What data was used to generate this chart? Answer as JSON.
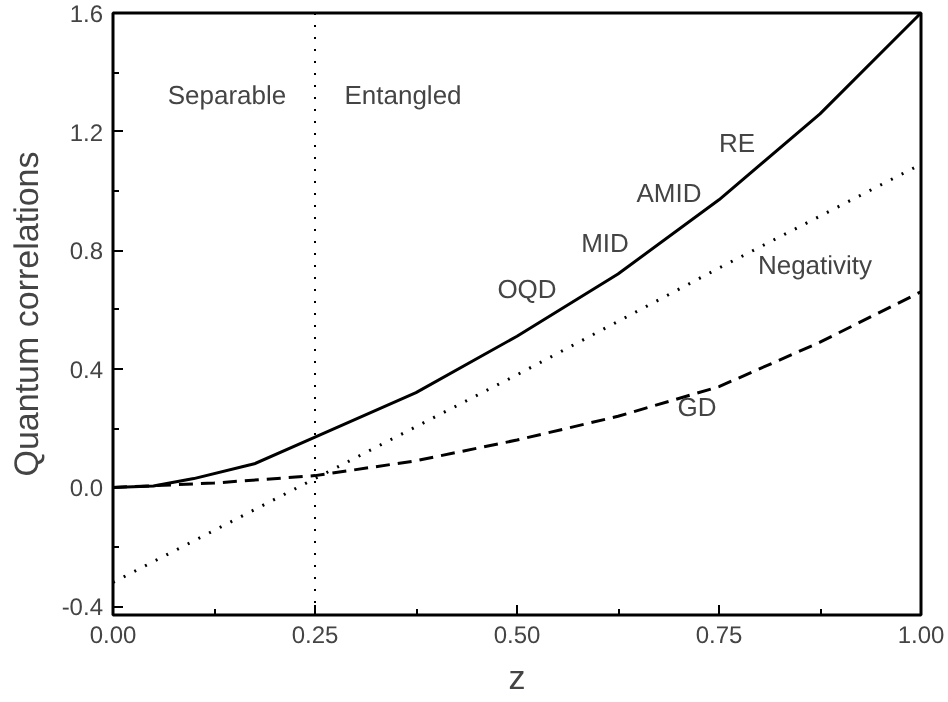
{
  "chart_data": {
    "type": "line",
    "xlabel": "z",
    "ylabel": "Quantum correlations",
    "xlim": [
      0,
      1
    ],
    "ylim": [
      -0.43,
      1.6
    ],
    "xticks": [
      {
        "value": 0,
        "label": "0.00"
      },
      {
        "value": 0.25,
        "label": "0.25"
      },
      {
        "value": 0.5,
        "label": "0.50"
      },
      {
        "value": 0.75,
        "label": "0.75"
      },
      {
        "value": 1,
        "label": "1.00"
      }
    ],
    "yticks": [
      -0.4,
      {
        "value": 0,
        "label": "0.0"
      },
      0.4,
      0.8,
      1.2,
      1.6
    ],
    "series": [
      {
        "color": "#000000",
        "line_style": "solid",
        "x": [
          0,
          0.05,
          0.1,
          0.175,
          0.25,
          0.375,
          0.5,
          0.625,
          0.75,
          0.875,
          1
        ],
        "values": [
          0,
          0.005,
          0.03,
          0.08,
          0.17,
          0.32,
          0.51,
          0.72,
          0.97,
          1.26,
          1.6
        ]
      },
      {
        "color": "#000000",
        "line_style": "dotted",
        "x": [
          0,
          0.25,
          0.5,
          0.75,
          1
        ],
        "values": [
          -0.32,
          0.03,
          0.38,
          0.74,
          1.09
        ]
      },
      {
        "color": "#000000",
        "line_style": "dashed",
        "x": [
          0,
          0.125,
          0.25,
          0.375,
          0.5,
          0.625,
          0.75,
          0.875,
          1
        ],
        "values": [
          0,
          0.015,
          0.04,
          0.09,
          0.16,
          0.24,
          0.34,
          0.49,
          0.66
        ]
      }
    ],
    "ref_lines": [
      {
        "axis": "x",
        "value": 0.25,
        "line_style": "dotted",
        "color": "#000000"
      }
    ],
    "annotations": [
      "Separable",
      "Entangled",
      "OQD",
      "MID",
      "AMID",
      "RE",
      "Negativity",
      "GD"
    ]
  }
}
